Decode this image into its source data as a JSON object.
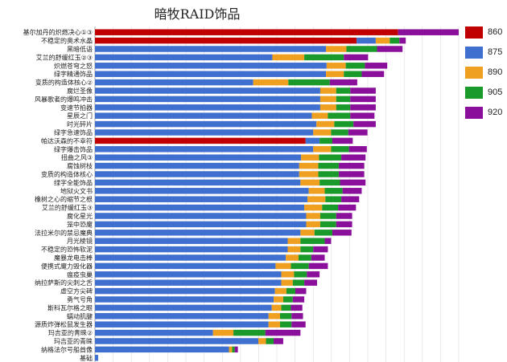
{
  "chart_data": {
    "type": "bar",
    "orientation": "horizontal",
    "stacked": true,
    "title": "暗牧RAID饰品",
    "xlabel": "",
    "ylabel": "",
    "grid": true,
    "legend_position": "right",
    "colors": {
      "860": "#c00000",
      "875": "#3f6fcf",
      "890": "#f0a020",
      "905": "#1a9a2a",
      "920": "#8a0f9a"
    },
    "categories": [
      "基尔加丹的炽燃决心①③",
      "不稳定的奥术水晶",
      "黑暗低语",
      "艾兰的舒缓红玉②③",
      "炽燃苍穹之怒",
      "绿字精通饰品",
      "变质的构造体核心②",
      "腐烂圣像",
      "风暴歌者的爆鸣冲击",
      "变速节拍器",
      "星辰之门",
      "时光碎片",
      "绿字急速饰品",
      "帕达沃森的不幸符",
      "绿字爆击饰品",
      "扭曲之风③",
      "腐蚀树枝",
      "变质的构造体核心",
      "绿字全能饰品",
      "地狱火文书",
      "橡树之心的缩节之根",
      "艾兰的舒缓红玉③",
      "腐化星光",
      "笼中恐魔",
      "法拉米尔的禁忌魔典",
      "月光棱镜",
      "不稳定的恐怖软泥",
      "魔暴龙电击棒",
      "便携式魔力毁化器",
      "瘟疫虫巢",
      "纳拉萨斯的尖刺之舌",
      "虚空方尖碑",
      "勇气号角",
      "斯科瓦尔格之眼",
      "蠕动肌腱",
      "源质炸弹松鼠发生器",
      "玛吉亚的青睐②",
      "玛吉亚的青睐",
      "纳格法尔号船首像",
      "基础"
    ],
    "series": [
      {
        "name": "860",
        "values": [
          475,
          410,
          0,
          0,
          0,
          0,
          0,
          0,
          0,
          0,
          0,
          0,
          0,
          330,
          0,
          0,
          0,
          0,
          0,
          0,
          0,
          0,
          0,
          0,
          0,
          0,
          0,
          0,
          0,
          0,
          0,
          0,
          0,
          0,
          0,
          0,
          0,
          0,
          0,
          0
        ]
      },
      {
        "name": "875",
        "values": [
          0,
          30,
          362,
          278,
          363,
          362,
          248,
          353,
          353,
          353,
          340,
          347,
          342,
          22,
          342,
          323,
          320,
          320,
          322,
          335,
          333,
          328,
          331,
          331,
          322,
          302,
          302,
          299,
          283,
          292,
          292,
          282,
          280,
          277,
          272,
          272,
          185,
          256,
          210,
          5
        ]
      },
      {
        "name": "890",
        "values": [
          0,
          22,
          32,
          50,
          30,
          28,
          55,
          25,
          25,
          25,
          25,
          28,
          28,
          0,
          28,
          28,
          30,
          30,
          30,
          25,
          28,
          28,
          22,
          22,
          22,
          20,
          20,
          20,
          24,
          20,
          18,
          18,
          15,
          15,
          18,
          18,
          32,
          12,
          5,
          0
        ]
      },
      {
        "name": "905",
        "values": [
          0,
          15,
          48,
          62,
          30,
          28,
          65,
          22,
          22,
          22,
          35,
          30,
          27,
          20,
          28,
          35,
          32,
          32,
          32,
          28,
          25,
          25,
          25,
          25,
          28,
          38,
          20,
          20,
          28,
          20,
          18,
          14,
          15,
          15,
          18,
          18,
          50,
          12,
          4,
          0
        ]
      },
      {
        "name": "920",
        "values": [
          95,
          10,
          40,
          38,
          35,
          35,
          43,
          40,
          40,
          40,
          38,
          35,
          30,
          32,
          28,
          38,
          40,
          40,
          40,
          30,
          28,
          28,
          25,
          25,
          30,
          10,
          23,
          21,
          30,
          20,
          20,
          17,
          18,
          18,
          18,
          22,
          55,
          15,
          5,
          0
        ]
      }
    ],
    "xlim": [
      0,
      570
    ]
  }
}
